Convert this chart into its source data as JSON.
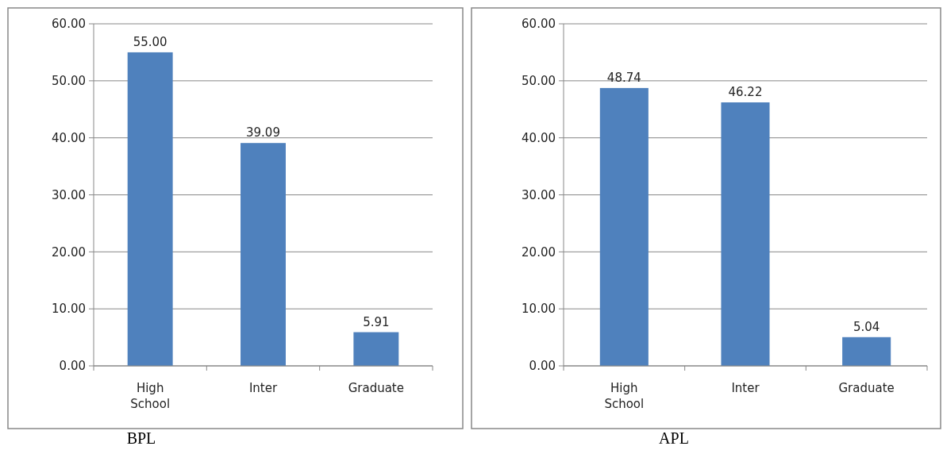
{
  "chart_data": [
    {
      "type": "bar",
      "title": "BPL",
      "categories": [
        "High School",
        "Inter",
        "Graduate"
      ],
      "values": [
        55.0,
        39.09,
        5.91
      ],
      "value_labels": [
        "55.00",
        "39.09",
        "5.91"
      ],
      "color": "#4f81bd",
      "ylim": [
        0,
        60
      ],
      "yticks": [
        {
          "value": 0,
          "label": "0.00"
        },
        {
          "value": 10,
          "label": "10.00"
        },
        {
          "value": 20,
          "label": "20.00"
        },
        {
          "value": 30,
          "label": "30.00"
        },
        {
          "value": 40,
          "label": "40.00"
        },
        {
          "value": 50,
          "label": "50.00"
        },
        {
          "value": 60,
          "label": "60.00"
        }
      ],
      "grid": "y"
    },
    {
      "type": "bar",
      "title": "APL",
      "categories": [
        "High School",
        "Inter",
        "Graduate"
      ],
      "values": [
        48.74,
        46.22,
        5.04
      ],
      "value_labels": [
        "48.74",
        "46.22",
        "5.04"
      ],
      "color": "#4f81bd",
      "ylim": [
        0,
        60
      ],
      "yticks": [
        {
          "value": 0,
          "label": "0.00"
        },
        {
          "value": 10,
          "label": "10.00"
        },
        {
          "value": 20,
          "label": "20.00"
        },
        {
          "value": 30,
          "label": "30.00"
        },
        {
          "value": 40,
          "label": "40.00"
        },
        {
          "value": 50,
          "label": "50.00"
        },
        {
          "value": 60,
          "label": "60.00"
        }
      ],
      "grid": "y"
    }
  ]
}
